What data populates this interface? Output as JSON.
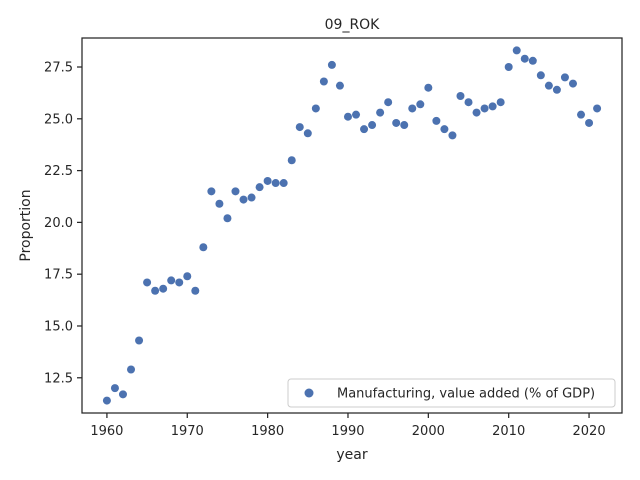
{
  "chart_data": {
    "type": "scatter",
    "title": "09_ROK",
    "xlabel": "year",
    "ylabel": "Proportion",
    "xlim": [
      1956.9,
      2024.1
    ],
    "ylim": [
      10.8,
      28.9
    ],
    "xticks": [
      1960,
      1970,
      1980,
      1990,
      2000,
      2010,
      2020
    ],
    "xtick_labels": [
      "1960",
      "1970",
      "1980",
      "1990",
      "2000",
      "2010",
      "2020"
    ],
    "yticks": [
      12.5,
      15.0,
      17.5,
      20.0,
      22.5,
      25.0,
      27.5
    ],
    "ytick_labels": [
      "12.5",
      "15.0",
      "17.5",
      "20.0",
      "22.5",
      "25.0",
      "27.5"
    ],
    "grid": false,
    "legend_position": "lower-right",
    "series": [
      {
        "name": "Manufacturing, value added (% of GDP)",
        "color": "#4c72b0",
        "x": [
          1960,
          1961,
          1962,
          1963,
          1964,
          1965,
          1966,
          1967,
          1968,
          1969,
          1970,
          1971,
          1972,
          1973,
          1974,
          1975,
          1976,
          1977,
          1978,
          1979,
          1980,
          1981,
          1982,
          1983,
          1984,
          1985,
          1986,
          1987,
          1988,
          1989,
          1990,
          1991,
          1992,
          1993,
          1994,
          1995,
          1996,
          1997,
          1998,
          1999,
          2000,
          2001,
          2002,
          2003,
          2004,
          2005,
          2006,
          2007,
          2008,
          2009,
          2010,
          2011,
          2012,
          2013,
          2014,
          2015,
          2016,
          2017,
          2018,
          2019,
          2020,
          2021
        ],
        "y": [
          11.4,
          12.0,
          11.7,
          12.9,
          14.3,
          17.1,
          16.7,
          16.8,
          17.2,
          17.1,
          17.4,
          16.7,
          18.8,
          21.5,
          20.9,
          20.2,
          21.5,
          21.1,
          21.2,
          21.7,
          22.0,
          21.9,
          21.9,
          23.0,
          24.6,
          24.3,
          25.5,
          26.8,
          27.6,
          26.6,
          25.1,
          25.2,
          24.5,
          24.7,
          25.3,
          25.8,
          24.8,
          24.7,
          25.5,
          25.7,
          26.5,
          24.9,
          24.5,
          24.2,
          26.1,
          25.8,
          25.3,
          25.5,
          25.6,
          25.8,
          27.5,
          28.3,
          27.9,
          27.8,
          27.1,
          26.6,
          26.4,
          27.0,
          26.7,
          25.2,
          24.8,
          25.5
        ]
      }
    ]
  }
}
